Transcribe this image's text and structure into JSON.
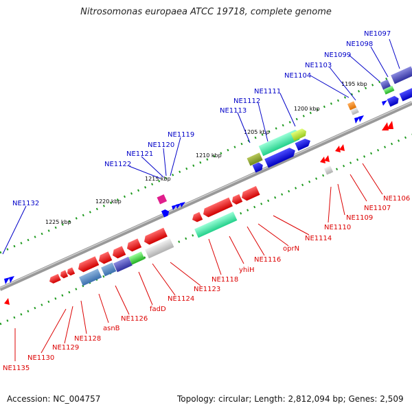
{
  "header": {
    "title": "Nitrosomonas europaea ATCC 19718, complete genome"
  },
  "footer": {
    "accession": "Accession: NC_004757",
    "topology": "Topology: circular; Length: 2,812,094 bp; Genes: 2,509"
  },
  "colors": {
    "backbone": "#8c8c8c",
    "tick": "#1e9a1e",
    "forward_label": "#0000c8",
    "reverse_label": "#dc0000",
    "forward_gene": "#0000ff",
    "reverse_gene": "#ff0000"
  },
  "position_labels": [
    "1195 kbp",
    "1200 kbp",
    "1205 kbp",
    "1210 kbp",
    "1215 kbp",
    "1220 kbp",
    "1225 kbp"
  ],
  "forward_labels": [
    "NE1097",
    "NE1098",
    "NE1099",
    "NE1103",
    "NE1104",
    "NE1111",
    "NE1112",
    "NE1113",
    "NE1119",
    "NE1120",
    "NE1121",
    "NE1122",
    "NE1132"
  ],
  "reverse_labels": [
    "NE1106",
    "NE1107",
    "NE1109",
    "NE1110",
    "NE1114",
    "oprN",
    "NE1116",
    "yhiH",
    "NE1118",
    "NE1123",
    "NE1124",
    "fadD",
    "NE1126",
    "asnB",
    "NE1128",
    "NE1129",
    "NE1130",
    "NE1135"
  ]
}
